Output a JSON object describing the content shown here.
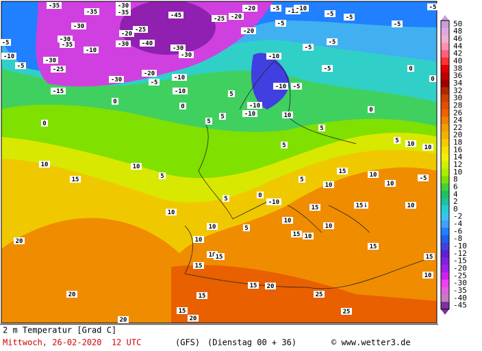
{
  "title": "2 m Temperatur [Grad C]",
  "date": "Mittwoch, 26-02-2020  12 UTC",
  "model": "(GFS)",
  "run": "(Dienstag 00 + 36)",
  "source": "© www.wetter3.de",
  "scale": {
    "levels": [
      50,
      48,
      46,
      44,
      42,
      40,
      38,
      36,
      34,
      32,
      30,
      28,
      26,
      24,
      22,
      20,
      18,
      16,
      14,
      12,
      10,
      8,
      6,
      4,
      2,
      0,
      -2,
      -4,
      -6,
      -8,
      -10,
      -12,
      -15,
      -20,
      -25,
      -30,
      -35,
      -40,
      -45
    ],
    "colors": [
      "#c8a0d8",
      "#e0a8e0",
      "#f0b0d0",
      "#ff90b0",
      "#ff6080",
      "#ff3030",
      "#e00000",
      "#c00000",
      "#a00000",
      "#b02800",
      "#d04000",
      "#e05000",
      "#f06000",
      "#f08000",
      "#f0a000",
      "#f0b400",
      "#f8c800",
      "#f8e000",
      "#f0f000",
      "#d0f000",
      "#a8f000",
      "#80e000",
      "#40d040",
      "#20c060",
      "#20c0a0",
      "#20d0d0",
      "#40c0f0",
      "#40a0ff",
      "#2080ff",
      "#2060f0",
      "#4040e0",
      "#6020d0",
      "#8020e0",
      "#a020f0",
      "#d020f0",
      "#f040f0",
      "#e060e0",
      "#c080c0",
      "#8030a0"
    ]
  },
  "map_labels": [
    -35,
    -35,
    -30,
    -35,
    -45,
    -25,
    -20,
    -20,
    -5,
    -15,
    -10,
    -5,
    -5,
    -5,
    -5,
    -30,
    -30,
    -35,
    -10,
    -20,
    -25,
    -40,
    -30,
    -30,
    -30,
    -20,
    -5,
    -5,
    -10,
    -5,
    -30,
    -25,
    -15,
    -30,
    -20,
    -10,
    -10,
    -5,
    -10,
    -5,
    -10,
    -5,
    -5,
    -10,
    -10,
    0,
    0,
    0,
    5,
    5,
    5,
    10,
    15,
    10,
    5,
    20,
    20,
    20,
    20,
    15,
    15,
    15,
    20,
    25,
    25,
    15,
    10,
    15,
    10,
    10,
    5,
    10,
    10,
    -5,
    10,
    15,
    10,
    15,
    10,
    10,
    15,
    10,
    -10,
    0,
    10,
    5,
    10,
    10,
    15,
    15,
    10,
    5,
    5,
    10,
    5,
    5,
    15,
    0,
    0,
    0,
    -5,
    15
  ]
}
